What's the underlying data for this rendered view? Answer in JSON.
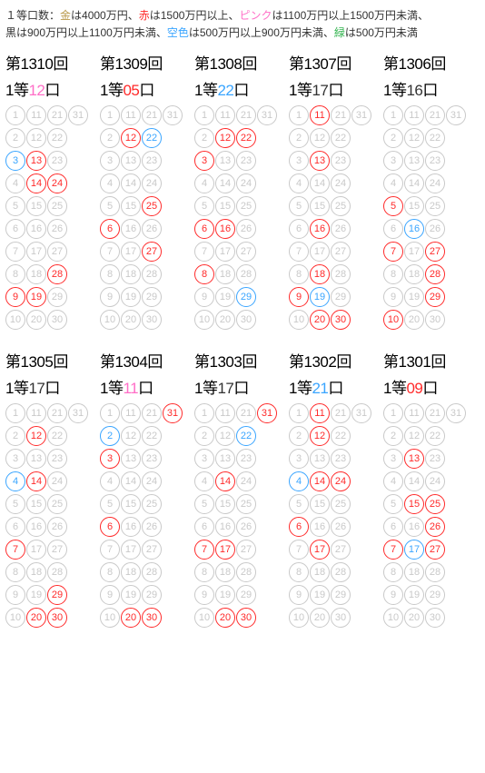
{
  "colors": {
    "gold": "#b9994a",
    "red": "#ff2a2a",
    "pink": "#ff6ec7",
    "black": "#333333",
    "sky": "#3aa5ff",
    "green": "#2fb24c",
    "gray": "#c9c9c9"
  },
  "legend": [
    {
      "t": "１等口数：",
      "c": "black"
    },
    {
      "t": "金",
      "c": "gold"
    },
    {
      "t": "は4000万円、",
      "c": "black"
    },
    {
      "t": "赤",
      "c": "red"
    },
    {
      "t": "は1500万円以上、",
      "c": "black"
    },
    {
      "t": "ピンク",
      "c": "pink"
    },
    {
      "t": "は1100万円以上1500万円未満、",
      "c": "black"
    },
    {
      "br": true
    },
    {
      "t": "黒は900万円以上1100万円未満、",
      "c": "black"
    },
    {
      "t": "空色",
      "c": "sky"
    },
    {
      "t": "は500万円以上900万円未満、",
      "c": "black"
    },
    {
      "t": "緑",
      "c": "green"
    },
    {
      "t": "は500万円未満",
      "c": "black"
    }
  ],
  "draws": [
    {
      "round": "1310",
      "count": "12",
      "countColor": "pink",
      "rows": [
        [
          "g",
          "g",
          "g",
          "g"
        ],
        [
          "g",
          "g",
          "g"
        ],
        [
          "sky",
          "red",
          "g"
        ],
        [
          "g",
          "red",
          "red"
        ],
        [
          "g",
          "g",
          "g"
        ],
        [
          "g",
          "g",
          "g"
        ],
        [
          "g",
          "g",
          "g"
        ],
        [
          "g",
          "g",
          "red"
        ],
        [
          "red",
          "red",
          "g"
        ],
        [
          "g",
          "g",
          "g"
        ]
      ]
    },
    {
      "round": "1309",
      "count": "05",
      "countColor": "red",
      "rows": [
        [
          "g",
          "g",
          "g",
          "g"
        ],
        [
          "g",
          "red",
          "sky"
        ],
        [
          "g",
          "g",
          "g"
        ],
        [
          "g",
          "g",
          "g"
        ],
        [
          "g",
          "g",
          "red"
        ],
        [
          "red",
          "g",
          "g"
        ],
        [
          "g",
          "g",
          "red"
        ],
        [
          "g",
          "g",
          "g"
        ],
        [
          "g",
          "g",
          "g"
        ],
        [
          "g",
          "g",
          "g"
        ]
      ]
    },
    {
      "round": "1308",
      "count": "22",
      "countColor": "sky",
      "rows": [
        [
          "g",
          "g",
          "g",
          "g"
        ],
        [
          "g",
          "red",
          "red"
        ],
        [
          "red",
          "g",
          "g"
        ],
        [
          "g",
          "g",
          "g"
        ],
        [
          "g",
          "g",
          "g"
        ],
        [
          "red",
          "red",
          "g"
        ],
        [
          "g",
          "g",
          "g"
        ],
        [
          "red",
          "g",
          "g"
        ],
        [
          "g",
          "g",
          "sky"
        ],
        [
          "g",
          "g",
          "g"
        ]
      ]
    },
    {
      "round": "1307",
      "count": "17",
      "countColor": "black",
      "rows": [
        [
          "g",
          "red",
          "g",
          "g"
        ],
        [
          "g",
          "g",
          "g"
        ],
        [
          "g",
          "red",
          "g"
        ],
        [
          "g",
          "g",
          "g"
        ],
        [
          "g",
          "g",
          "g"
        ],
        [
          "g",
          "red",
          "g"
        ],
        [
          "g",
          "g",
          "g"
        ],
        [
          "g",
          "red",
          "g"
        ],
        [
          "red",
          "sky",
          "g"
        ],
        [
          "g",
          "red",
          "red"
        ]
      ]
    },
    {
      "round": "1306",
      "count": "16",
      "countColor": "black",
      "rows": [
        [
          "g",
          "g",
          "g",
          "g"
        ],
        [
          "g",
          "g",
          "g"
        ],
        [
          "g",
          "g",
          "g"
        ],
        [
          "g",
          "g",
          "g"
        ],
        [
          "red",
          "g",
          "g"
        ],
        [
          "g",
          "sky",
          "g"
        ],
        [
          "red",
          "g",
          "red"
        ],
        [
          "g",
          "g",
          "red"
        ],
        [
          "g",
          "g",
          "red"
        ],
        [
          "red",
          "g",
          "g"
        ]
      ]
    },
    {
      "round": "1305",
      "count": "17",
      "countColor": "black",
      "rows": [
        [
          "g",
          "g",
          "g",
          "g"
        ],
        [
          "g",
          "red",
          "g"
        ],
        [
          "g",
          "g",
          "g"
        ],
        [
          "sky",
          "red",
          "g"
        ],
        [
          "g",
          "g",
          "g"
        ],
        [
          "g",
          "g",
          "g"
        ],
        [
          "red",
          "g",
          "g"
        ],
        [
          "g",
          "g",
          "g"
        ],
        [
          "g",
          "g",
          "red"
        ],
        [
          "g",
          "red",
          "red"
        ]
      ]
    },
    {
      "round": "1304",
      "count": "11",
      "countColor": "pink",
      "rows": [
        [
          "g",
          "g",
          "g",
          "red"
        ],
        [
          "sky",
          "g",
          "g"
        ],
        [
          "red",
          "g",
          "g"
        ],
        [
          "g",
          "g",
          "g"
        ],
        [
          "g",
          "g",
          "g"
        ],
        [
          "red",
          "g",
          "g"
        ],
        [
          "g",
          "g",
          "g"
        ],
        [
          "g",
          "g",
          "g"
        ],
        [
          "g",
          "g",
          "g"
        ],
        [
          "g",
          "red",
          "red"
        ]
      ]
    },
    {
      "round": "1303",
      "count": "17",
      "countColor": "black",
      "rows": [
        [
          "g",
          "g",
          "g",
          "red"
        ],
        [
          "g",
          "g",
          "sky"
        ],
        [
          "g",
          "g",
          "g"
        ],
        [
          "g",
          "red",
          "g"
        ],
        [
          "g",
          "g",
          "g"
        ],
        [
          "g",
          "g",
          "g"
        ],
        [
          "red",
          "red",
          "g"
        ],
        [
          "g",
          "g",
          "g"
        ],
        [
          "g",
          "g",
          "g"
        ],
        [
          "g",
          "red",
          "red"
        ]
      ]
    },
    {
      "round": "1302",
      "count": "21",
      "countColor": "sky",
      "rows": [
        [
          "g",
          "red",
          "g",
          "g"
        ],
        [
          "g",
          "red",
          "g"
        ],
        [
          "g",
          "g",
          "g"
        ],
        [
          "sky",
          "red",
          "red"
        ],
        [
          "g",
          "g",
          "g"
        ],
        [
          "red",
          "g",
          "g"
        ],
        [
          "g",
          "red",
          "g"
        ],
        [
          "g",
          "g",
          "g"
        ],
        [
          "g",
          "g",
          "g"
        ],
        [
          "g",
          "g",
          "g"
        ]
      ]
    },
    {
      "round": "1301",
      "count": "09",
      "countColor": "red",
      "rows": [
        [
          "g",
          "g",
          "g",
          "g"
        ],
        [
          "g",
          "g",
          "g"
        ],
        [
          "g",
          "red",
          "g"
        ],
        [
          "g",
          "g",
          "g"
        ],
        [
          "g",
          "red",
          "red"
        ],
        [
          "g",
          "g",
          "red"
        ],
        [
          "red",
          "sky",
          "red"
        ],
        [
          "g",
          "g",
          "g"
        ],
        [
          "g",
          "g",
          "g"
        ],
        [
          "g",
          "g",
          "g"
        ]
      ]
    }
  ],
  "layoutNumbers": [
    [
      1,
      11,
      21,
      31
    ],
    [
      2,
      12,
      22
    ],
    [
      3,
      13,
      23
    ],
    [
      4,
      14,
      24
    ],
    [
      5,
      15,
      25
    ],
    [
      6,
      16,
      26
    ],
    [
      7,
      17,
      27
    ],
    [
      8,
      18,
      28
    ],
    [
      9,
      19,
      29
    ],
    [
      10,
      20,
      30
    ]
  ],
  "labels": {
    "roundPrefix": "第",
    "roundSuffix": "回",
    "subPrefix": "1等",
    "subSuffix": "口"
  }
}
